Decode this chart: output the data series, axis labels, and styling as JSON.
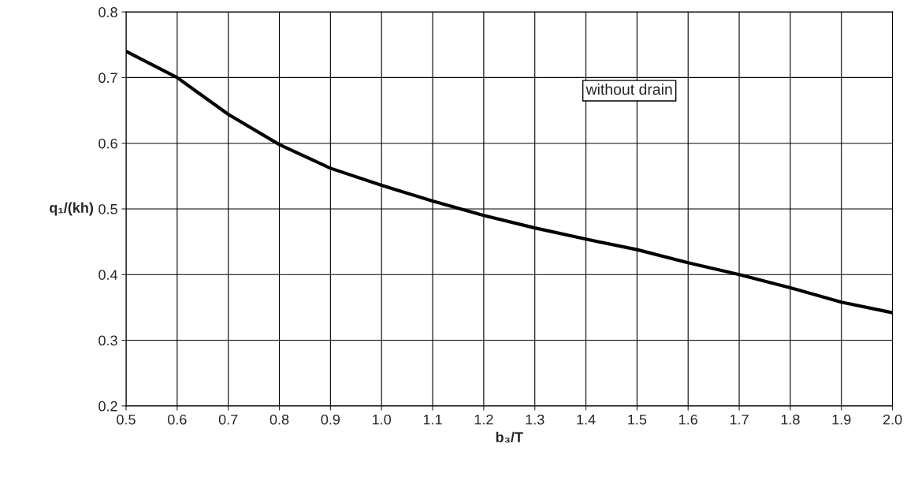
{
  "chart_data": {
    "type": "line",
    "xlabel": "b₃/T",
    "ylabel": "q₁/(kh)",
    "x": [
      0.5,
      0.6,
      0.7,
      0.8,
      0.9,
      1.0,
      1.1,
      1.2,
      1.3,
      1.4,
      1.5,
      1.6,
      1.7,
      1.8,
      1.9,
      2.0
    ],
    "series": [
      {
        "color": "#000000",
        "values": [
          0.74,
          0.7,
          0.644,
          0.598,
          0.562,
          0.536,
          0.512,
          0.49,
          0.471,
          0.454,
          0.438,
          0.418,
          0.4,
          0.38,
          0.358,
          0.342
        ]
      }
    ],
    "xlim": [
      0.5,
      2.0
    ],
    "ylim": [
      0.2,
      0.8
    ],
    "xticks": [
      0.5,
      0.6,
      0.7,
      0.8,
      0.9,
      {
        "value": 1.0,
        "label": "1.0"
      },
      1.1,
      1.2,
      1.3,
      1.4,
      1.5,
      1.6,
      1.7,
      1.8,
      1.9,
      {
        "value": 2.0,
        "label": "2.0"
      }
    ],
    "yticks": [
      0.2,
      0.3,
      0.4,
      0.5,
      0.6,
      0.7,
      0.8
    ],
    "grid": true,
    "legend": false,
    "marker": "none",
    "line_style": "solid",
    "annotations": [
      "without drain"
    ]
  }
}
